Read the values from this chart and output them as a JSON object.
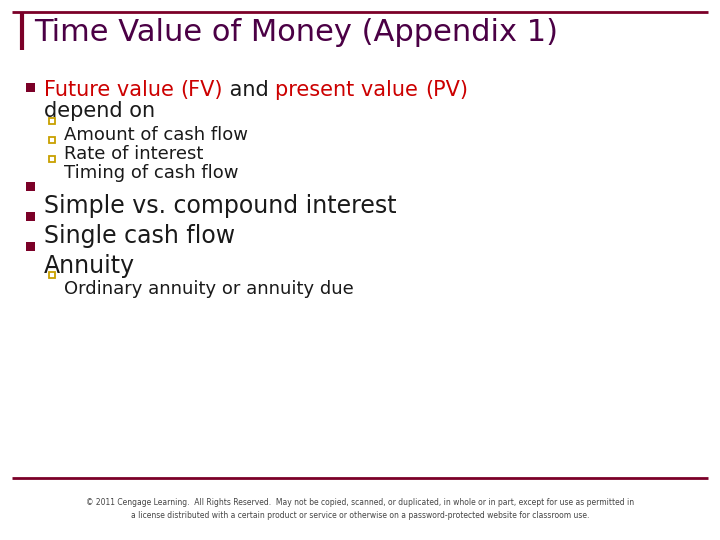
{
  "title": "Time Value of Money (Appendix 1)",
  "title_color": "#4B0045",
  "background_color": "#FFFFFF",
  "border_color": "#7B0028",
  "bullet_color": "#7B0028",
  "sub_bullet_color": "#C8A000",
  "text_color": "#1a1a1a",
  "red_color": "#CC0000",
  "footer_text": "© 2011 Cengage Learning.  All Rights Reserved.  May not be copied, scanned, or duplicated, in whole or in part, except for use as permitted in\na license distributed with a certain product or service or otherwise on a password-protected website for classroom use.",
  "sub_bullets1": [
    "Amount of cash flow",
    "Rate of interest",
    "Timing of cash flow"
  ],
  "bullet2": "Simple vs. compound interest",
  "bullet3": "Single cash flow",
  "bullet4": "Annuity",
  "sub_bullets4": [
    "Ordinary annuity or annuity due"
  ],
  "title_fontsize": 22,
  "bullet1_fontsize": 15,
  "bullet234_fontsize": 17,
  "sub_fontsize": 13,
  "footer_fontsize": 5.5
}
